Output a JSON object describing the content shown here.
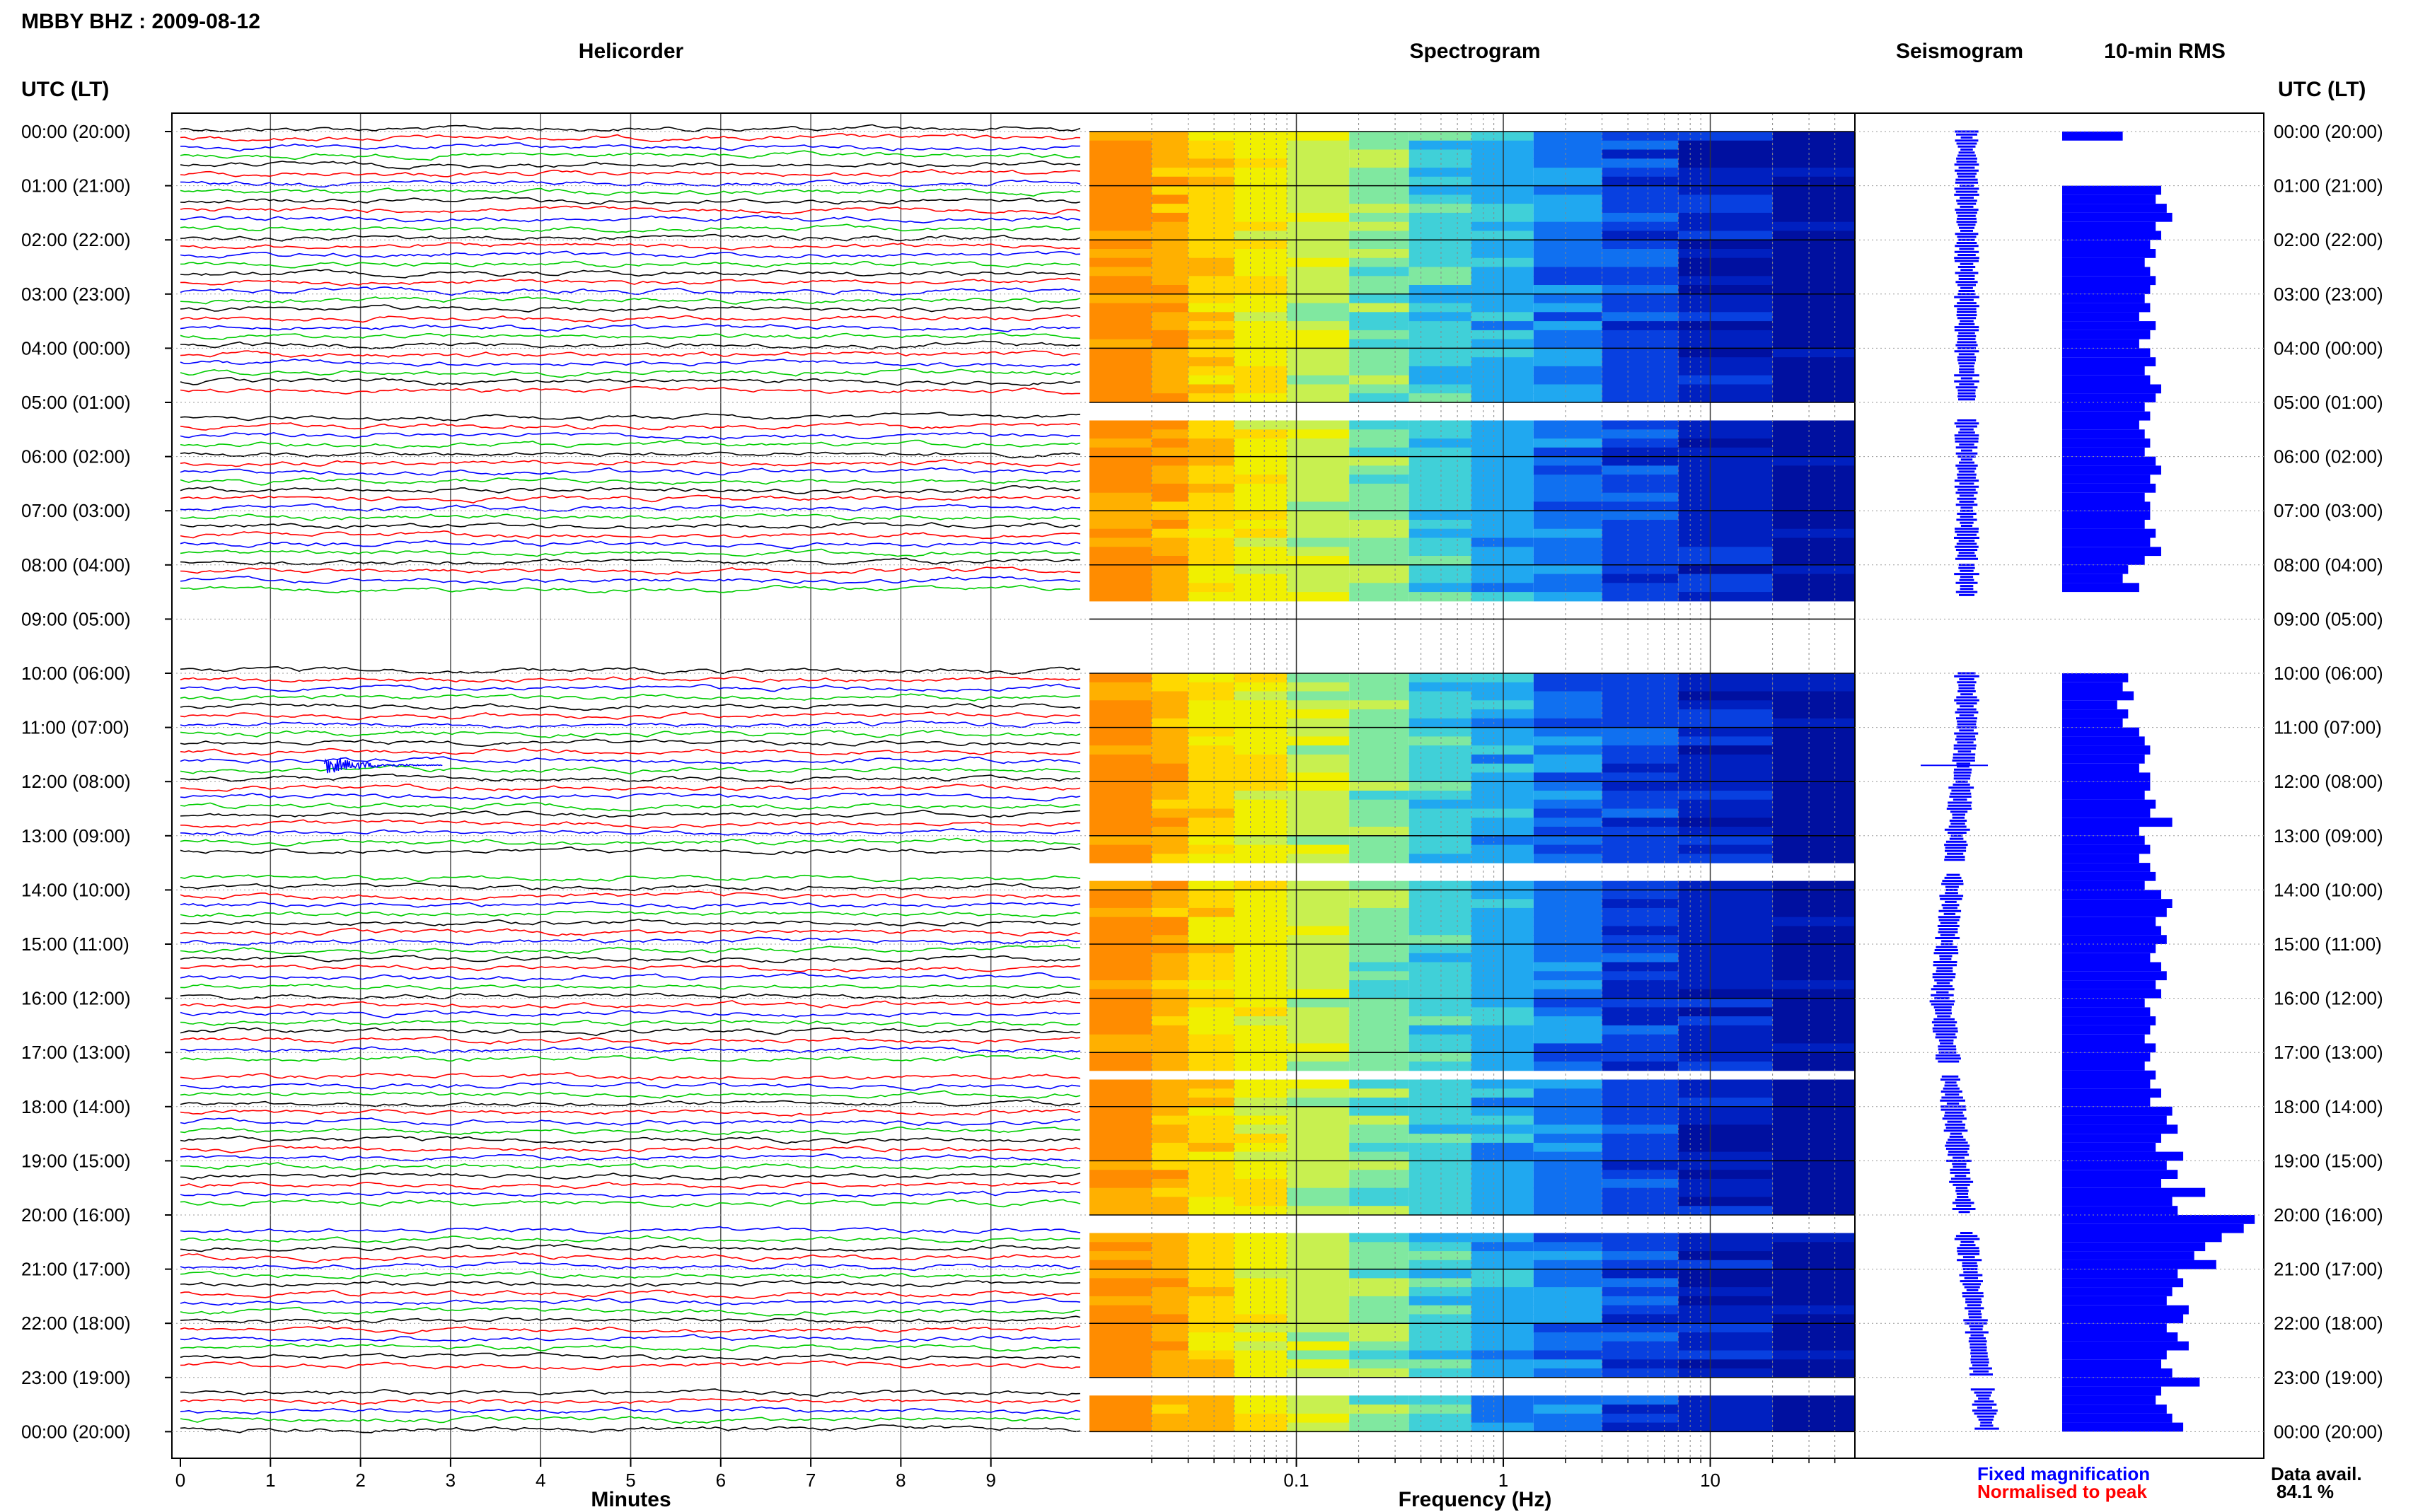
{
  "title": "MBBY BHZ : 2009-08-12",
  "panels": {
    "helicorder": "Helicorder",
    "spectrogram": "Spectrogram",
    "seismogram": "Seismogram",
    "rms": "10-min RMS"
  },
  "axis_labels": {
    "time_left": "UTC (LT)",
    "time_right": "UTC (LT)",
    "minutes": "Minutes",
    "frequency": "Frequency (Hz)"
  },
  "legend": {
    "fixed": "Fixed magnification",
    "normalised": "Normalised to peak",
    "fixed_color": "#0000ff",
    "normalised_color": "#ff0000"
  },
  "availability": {
    "label": "Data avail.",
    "value": "84.1 %",
    "percent": 84.1
  },
  "chart_data": {
    "type": "helicorder-composite",
    "hour_labels": [
      "00:00 (20:00)",
      "01:00 (21:00)",
      "02:00 (22:00)",
      "03:00 (23:00)",
      "04:00 (00:00)",
      "05:00 (01:00)",
      "06:00 (02:00)",
      "07:00 (03:00)",
      "08:00 (04:00)",
      "09:00 (05:00)",
      "10:00 (06:00)",
      "11:00 (07:00)",
      "12:00 (08:00)",
      "13:00 (09:00)",
      "14:00 (10:00)",
      "15:00 (11:00)",
      "16:00 (12:00)",
      "17:00 (13:00)",
      "18:00 (14:00)",
      "19:00 (15:00)",
      "20:00 (16:00)",
      "21:00 (17:00)",
      "22:00 (18:00)",
      "23:00 (19:00)",
      "00:00 (20:00)"
    ],
    "minutes_ticks": [
      "0",
      "1",
      "2",
      "3",
      "4",
      "5",
      "6",
      "7",
      "8",
      "9"
    ],
    "minutes_range": [
      0,
      10
    ],
    "frequency_ticks": [
      {
        "value": 0.1,
        "label": "0.1"
      },
      {
        "value": 1,
        "label": "1"
      },
      {
        "value": 10,
        "label": "10"
      }
    ],
    "frequency_range": [
      0.01,
      50
    ],
    "frequency_scale": "log",
    "trace_colors": [
      "#000000",
      "#ff0000",
      "#0000ff",
      "#00cc00"
    ],
    "gap_segments": [
      [
        5.0,
        5.3
      ],
      [
        7.9,
        8.0
      ],
      [
        8.6,
        10.0
      ],
      [
        11.0,
        11.0
      ],
      [
        13.5,
        13.7
      ],
      [
        17.2,
        17.4
      ],
      [
        20.0,
        20.3
      ],
      [
        23.0,
        23.2
      ]
    ],
    "event": {
      "hour": 11.67,
      "minute": 1.6,
      "label": ""
    },
    "rms_10min": [
      0.55,
      0.0,
      0.0,
      0.0,
      0.0,
      0.0,
      0.9,
      0.85,
      0.95,
      1.0,
      0.85,
      0.9,
      0.8,
      0.85,
      0.75,
      0.8,
      0.85,
      0.8,
      0.75,
      0.8,
      0.7,
      0.85,
      0.8,
      0.7,
      0.8,
      0.85,
      0.75,
      0.8,
      0.9,
      0.85,
      0.75,
      0.8,
      0.7,
      0.75,
      0.8,
      0.75,
      0.85,
      0.9,
      0.8,
      0.85,
      0.75,
      0.8,
      0.8,
      0.75,
      0.85,
      0.8,
      0.9,
      0.75,
      0.6,
      0.55,
      0.7,
      0.0,
      0.0,
      0.0,
      0.0,
      0.0,
      0.0,
      0.0,
      0.0,
      0.0,
      0.6,
      0.55,
      0.65,
      0.5,
      0.6,
      0.55,
      0.7,
      0.75,
      0.8,
      0.75,
      0.7,
      0.8,
      0.8,
      0.75,
      0.85,
      0.8,
      1.0,
      0.7,
      0.75,
      0.8,
      0.7,
      0.8,
      0.85,
      0.75,
      0.9,
      1.0,
      0.95,
      0.85,
      0.9,
      0.95,
      0.85,
      0.8,
      0.9,
      0.95,
      0.85,
      0.9,
      0.75,
      0.8,
      0.85,
      0.8,
      0.75,
      0.85,
      0.8,
      0.75,
      0.85,
      0.8,
      0.9,
      0.8,
      1.0,
      0.95,
      1.05,
      0.9,
      0.85,
      1.1,
      0.95,
      1.05,
      0.9,
      1.3,
      1.0,
      1.05,
      1.75,
      1.65,
      1.45,
      1.3,
      1.2,
      1.4,
      1.05,
      1.1,
      1.0,
      0.95,
      1.15,
      1.1,
      0.95,
      1.05,
      1.15,
      0.95,
      0.9,
      1.0,
      1.25,
      0.9,
      0.85,
      0.95,
      1.0,
      1.1,
      0.7,
      0.65,
      0.6,
      0.55,
      0.5,
      0.45
    ]
  }
}
